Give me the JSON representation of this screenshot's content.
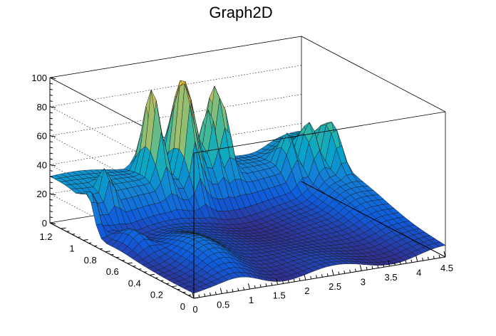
{
  "chart_data": {
    "type": "surface",
    "title": "Graph2D",
    "x_ticks": [
      "0",
      "0.5",
      "1",
      "1.5",
      "2",
      "2.5",
      "3",
      "3.5",
      "4",
      "4.5"
    ],
    "y_ticks": [
      "0",
      "0.2",
      "0.4",
      "0.6",
      "0.8",
      "1",
      "1.2"
    ],
    "z_ticks": [
      "0",
      "20",
      "40",
      "60",
      "80",
      "100"
    ],
    "xlim": [
      0,
      4.5
    ],
    "ylim": [
      0,
      1.3
    ],
    "zlim": [
      0,
      100
    ],
    "grid": true,
    "colormap": [
      "#352a87",
      "#0f5cdd",
      "#1481d6",
      "#06a4ca",
      "#2eb7a4",
      "#87bf77",
      "#d1bb59",
      "#fec832",
      "#f9fb0e"
    ],
    "notable_peaks": [
      {
        "x": 1.55,
        "y": 1.15,
        "z": 90
      },
      {
        "x": 2.2,
        "y": 1.2,
        "z": 93
      },
      {
        "x": 2.8,
        "y": 1.2,
        "z": 93
      },
      {
        "x": 4.4,
        "y": 0.95,
        "z": 55
      },
      {
        "x": 0.05,
        "y": 0.95,
        "z": 40
      }
    ]
  }
}
